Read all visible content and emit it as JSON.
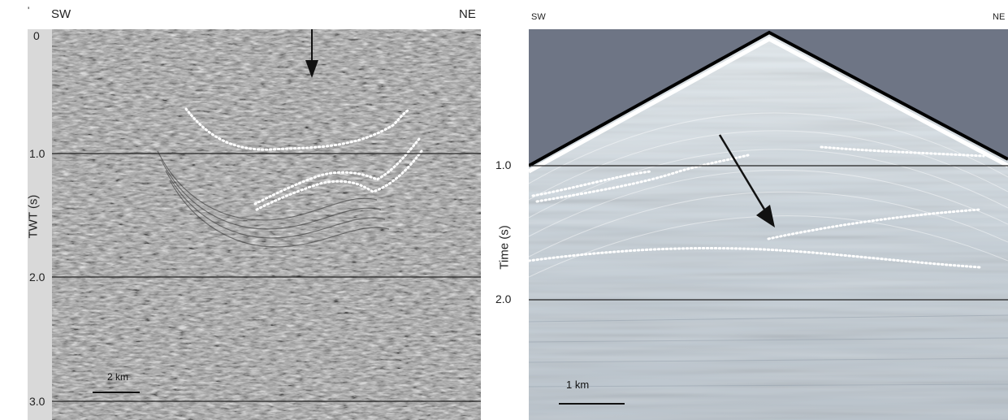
{
  "left_panel": {
    "left_label": "SW",
    "right_label": "NE",
    "y_axis_title": "TWT (s)",
    "y_ticks": [
      "0",
      "1.0",
      "2.0",
      "3.0"
    ],
    "scale_bar": "2 km",
    "background": "#9a9a9a"
  },
  "right_panel": {
    "left_label": "SW",
    "right_label": "NE",
    "y_axis_title": "Time (s)",
    "y_ticks": [
      "1.0",
      "2.0"
    ],
    "scale_bar": "1 km",
    "sky_color": "#6e7585",
    "section_color": "#c3cdd6"
  }
}
